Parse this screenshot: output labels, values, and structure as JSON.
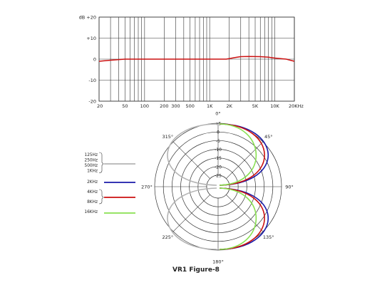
{
  "caption": "VR1 Figure-8",
  "chart_data": [
    {
      "type": "line",
      "xlabel": "",
      "ylabel": "dB",
      "x_scale": "log",
      "xlim": [
        20,
        20000
      ],
      "ylim": [
        -20,
        20
      ],
      "x_tick_labels": [
        "20",
        "50",
        "100",
        "200",
        "300",
        "500",
        "1K",
        "2K",
        "5K",
        "10K",
        "20KHz"
      ],
      "x_ticks": [
        20,
        50,
        100,
        200,
        300,
        500,
        1000,
        2000,
        5000,
        10000,
        20000
      ],
      "y_tick_labels": [
        "dB +20",
        "+10",
        "0",
        "-10",
        "-20"
      ],
      "y_ticks": [
        20,
        10,
        0,
        -10,
        -20
      ],
      "grid": true,
      "series": [
        {
          "color": "#cc1111",
          "x": [
            20,
            30,
            50,
            100,
            200,
            500,
            1000,
            1500,
            1800,
            2500,
            3000,
            4000,
            6000,
            8000,
            10000,
            15000,
            20000
          ],
          "y": [
            -1,
            -0.5,
            0,
            0,
            0,
            0,
            0,
            0,
            0,
            0.8,
            1.2,
            1.3,
            1.2,
            0.9,
            0.5,
            0,
            -1
          ]
        }
      ]
    },
    {
      "type": "polar",
      "r_unit": "dB",
      "r_tick_labels": [
        "+5",
        "0",
        "-5",
        "-10",
        "-15",
        "-20",
        "-25"
      ],
      "r_ticks": [
        5,
        0,
        -5,
        -10,
        -15,
        -20,
        -25
      ],
      "r_range": [
        -25,
        5
      ],
      "angle_labels": [
        "0°",
        "45°",
        "90°",
        "135°",
        "180°",
        "225°",
        "270°",
        "315°"
      ],
      "angles": [
        0,
        45,
        90,
        135,
        180,
        225,
        270,
        315
      ],
      "legend": [
        {
          "labels": [
            "125Hz",
            "250Hz",
            "500Hz",
            "1KHz"
          ],
          "color": "#b4b4b4"
        },
        {
          "labels": [
            "2KHz"
          ],
          "color": "#1a1aa8"
        },
        {
          "labels": [
            "4KHz",
            "8KHz"
          ],
          "color": "#cc1111"
        },
        {
          "labels": [
            "16KHz"
          ],
          "color": "#88e050"
        }
      ],
      "series": [
        {
          "frequency": "125Hz-1KHz",
          "color": "#b4b4b4",
          "lobe_side": "rear"
        },
        {
          "frequency": "2KHz",
          "color": "#1a1aa8",
          "lobe_side": "front"
        },
        {
          "frequency": "4KHz-8KHz",
          "color": "#cc1111",
          "lobe_side": "front"
        },
        {
          "frequency": "16KHz",
          "color": "#88e050",
          "lobe_side": "front"
        }
      ]
    }
  ]
}
